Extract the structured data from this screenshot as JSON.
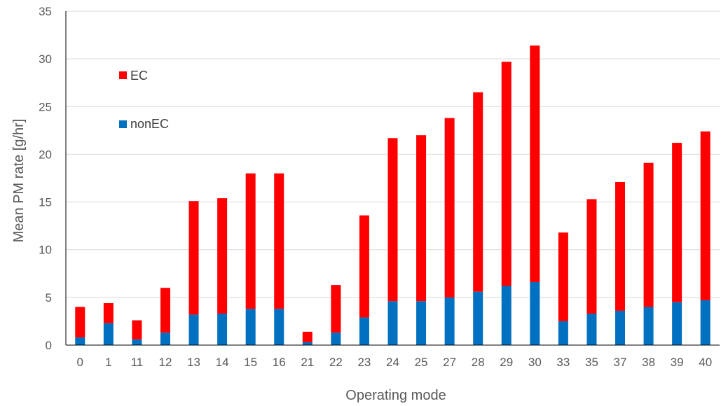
{
  "chart_data": {
    "type": "bar",
    "stacked": true,
    "xlabel": "Operating mode",
    "ylabel": "Mean PM rate [g/hr]",
    "ylim": [
      0,
      35
    ],
    "yticks": [
      0,
      5,
      10,
      15,
      20,
      25,
      30,
      35
    ],
    "grid": true,
    "legend_position": "top-left",
    "categories": [
      "0",
      "1",
      "11",
      "12",
      "13",
      "14",
      "15",
      "16",
      "21",
      "22",
      "23",
      "24",
      "25",
      "27",
      "28",
      "29",
      "30",
      "33",
      "35",
      "37",
      "38",
      "39",
      "40"
    ],
    "series": [
      {
        "name": "nonEC",
        "color": "#0070C0",
        "values": [
          0.8,
          2.3,
          0.6,
          1.3,
          3.2,
          3.3,
          3.8,
          3.8,
          0.3,
          1.3,
          2.9,
          4.6,
          4.6,
          5.0,
          5.6,
          6.2,
          6.6,
          2.5,
          3.3,
          3.6,
          4.0,
          4.5,
          4.7
        ]
      },
      {
        "name": "EC",
        "color": "#FF0000",
        "values": [
          3.2,
          2.1,
          2.0,
          4.7,
          11.9,
          12.1,
          14.2,
          14.2,
          1.1,
          5.0,
          10.7,
          17.1,
          17.4,
          18.8,
          20.9,
          23.5,
          24.8,
          9.3,
          12.0,
          13.5,
          15.1,
          16.7,
          17.7
        ]
      }
    ]
  }
}
